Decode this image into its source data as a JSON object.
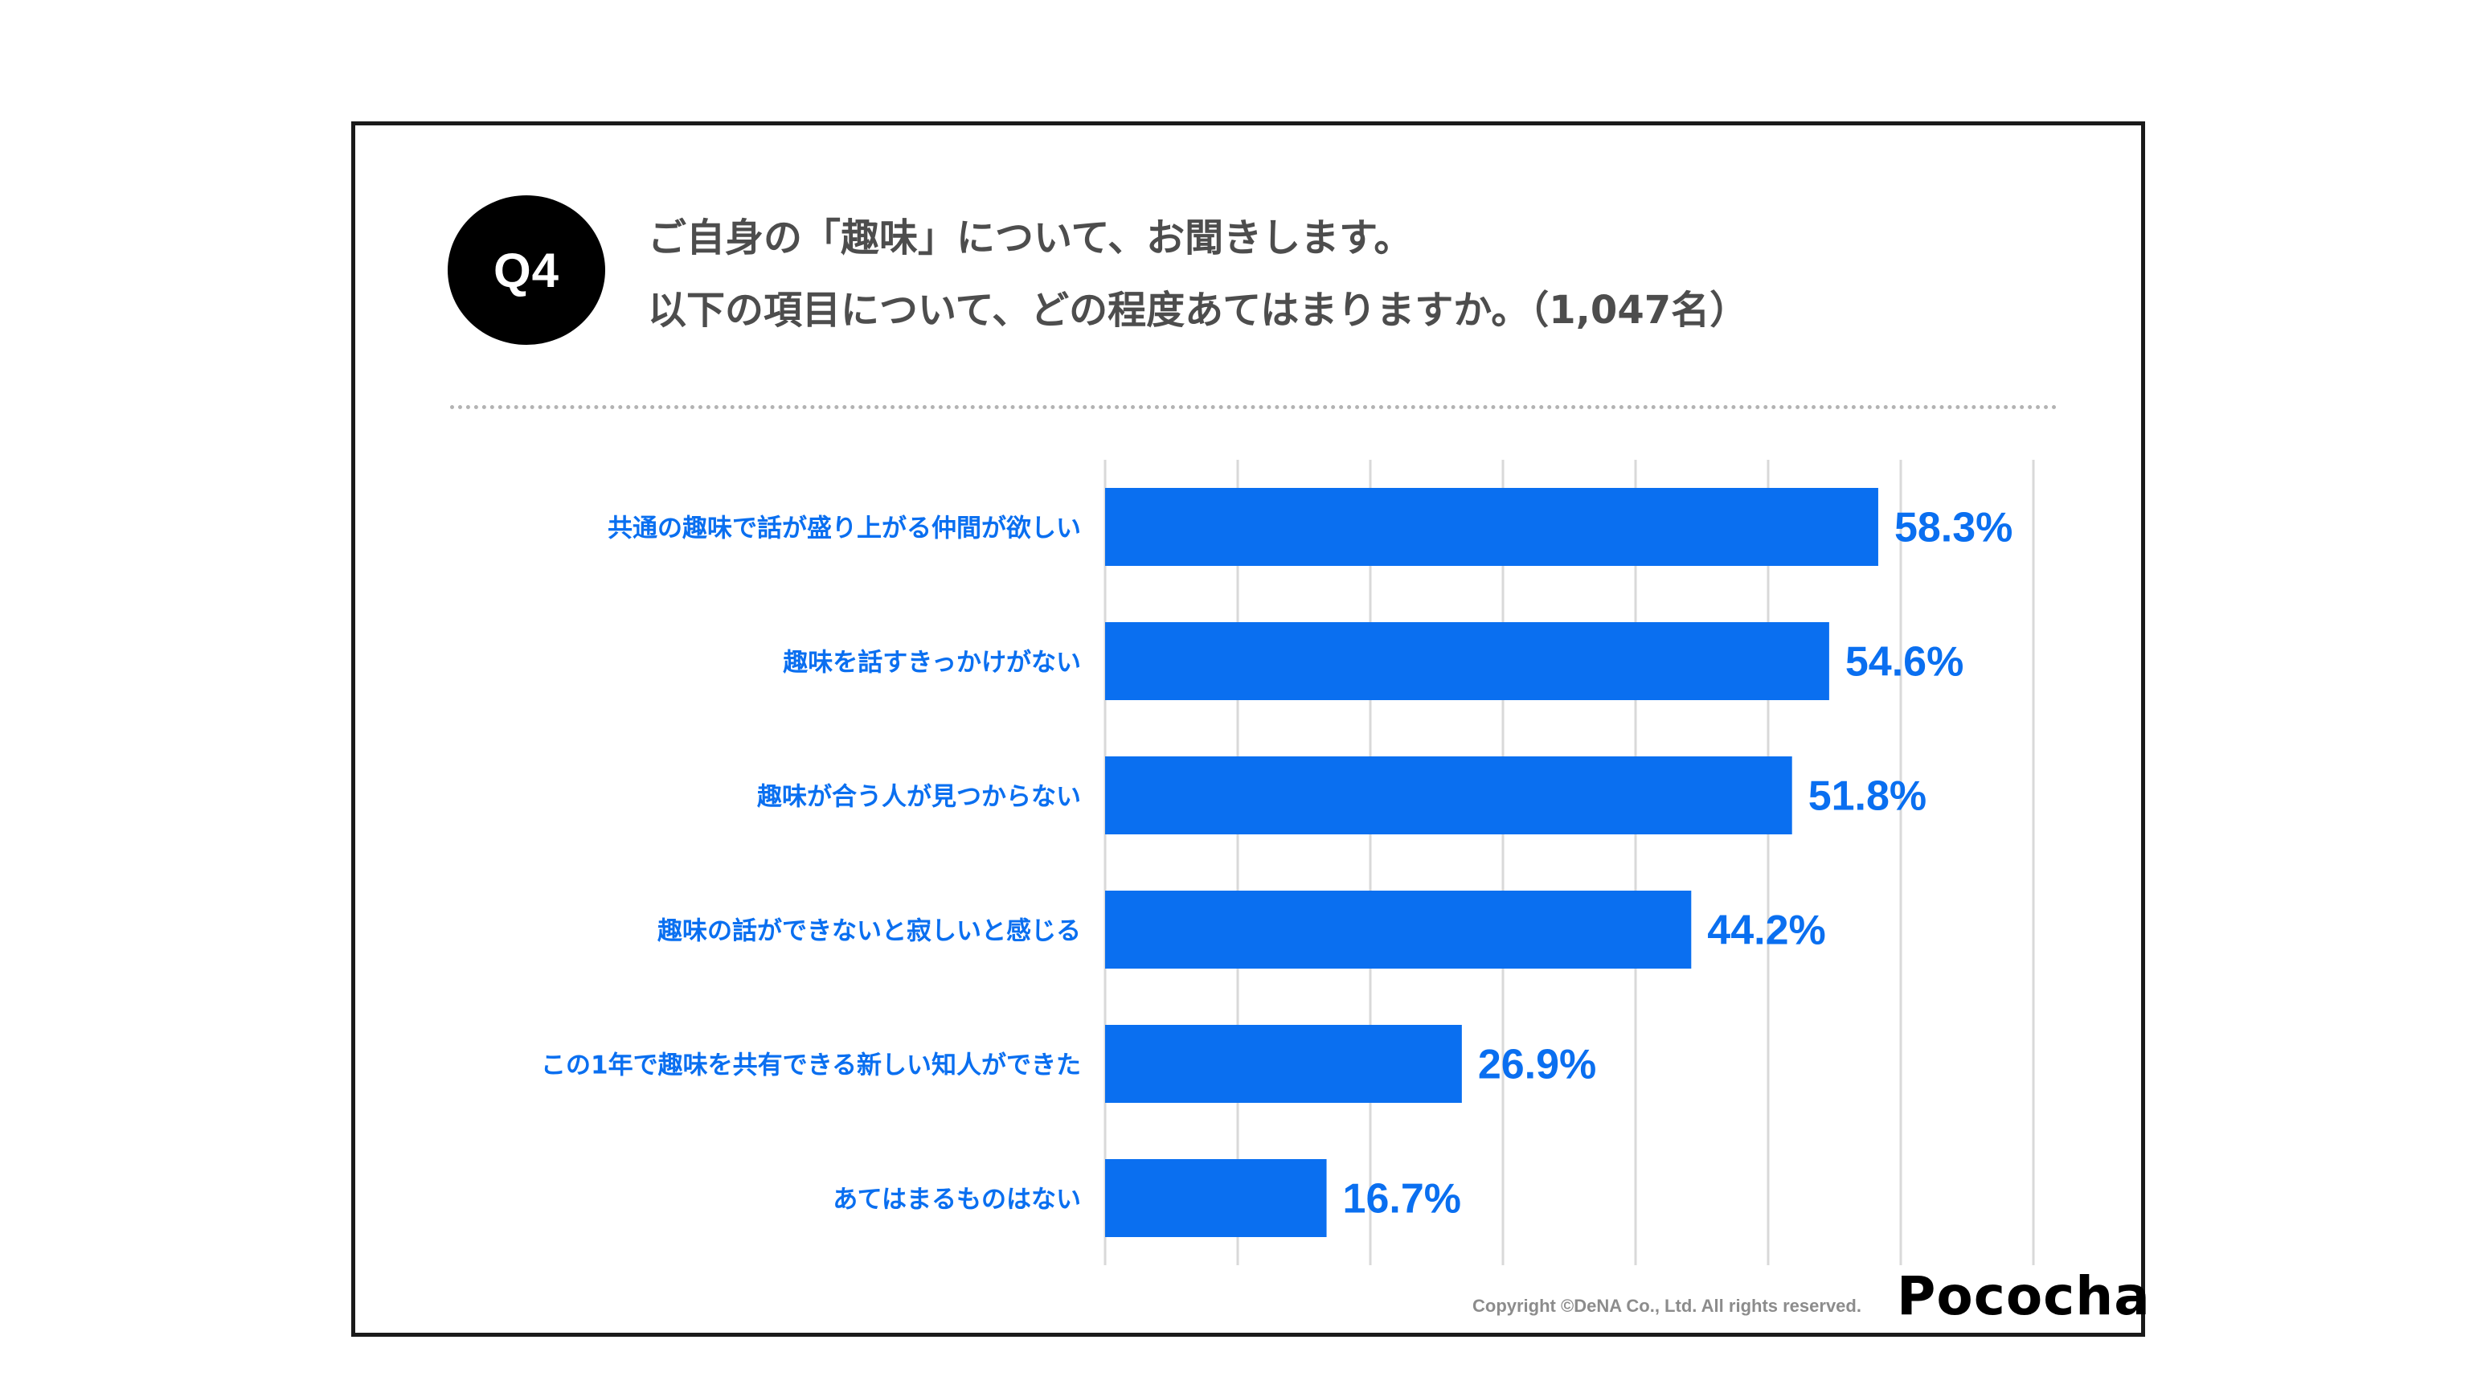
{
  "question": {
    "badge": "Q4",
    "line1": "ご自身の「趣味」について、お聞きします。",
    "line2": "以下の項目について、どの程度あてはまりますか。（1,047名）"
  },
  "chart_data": {
    "type": "bar",
    "orientation": "horizontal",
    "categories": [
      "共通の趣味で話が盛り上がる仲間が欲しい",
      "趣味を話すきっかけがない",
      "趣味が合う人が見つからない",
      "趣味の話ができないと寂しいと感じる",
      "この1年で趣味を共有できる新しい知人ができた",
      "あてはまるものはない"
    ],
    "values": [
      58.3,
      54.6,
      51.8,
      44.2,
      26.9,
      16.7
    ],
    "value_labels": [
      "58.3%",
      "54.6%",
      "51.8%",
      "44.2%",
      "26.9%",
      "16.7%"
    ],
    "xlim": [
      0,
      70
    ],
    "grid": true,
    "gridline_step": 10,
    "bar_color": "#0a6ff0",
    "label_color": "#0a6ff0",
    "grid_color": "#d9d9d9"
  },
  "footer": {
    "copyright": "Copyright ©DeNA Co., Ltd. All rights reserved.",
    "logo": "Pococha"
  }
}
